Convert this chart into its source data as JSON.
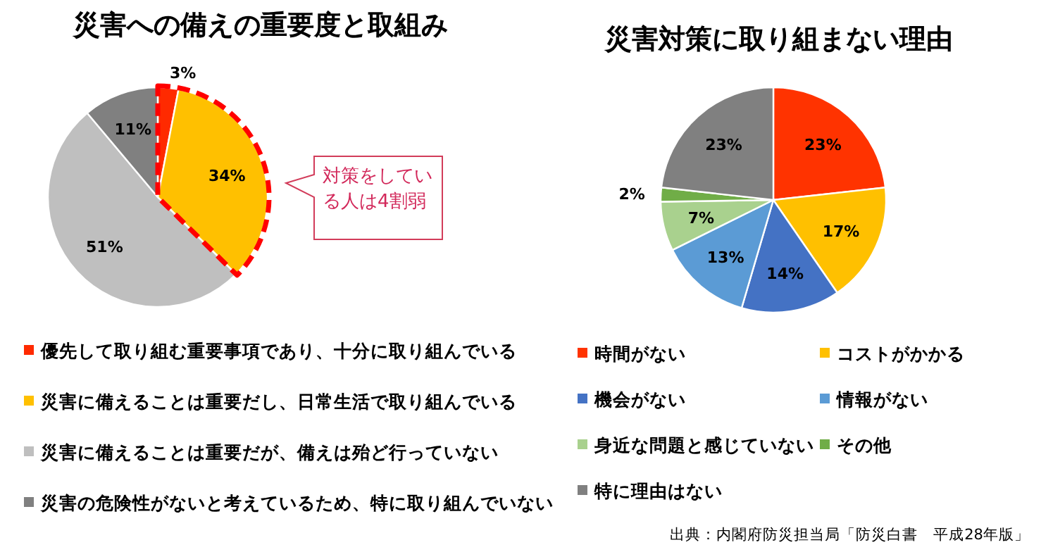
{
  "chart_data": [
    {
      "type": "pie",
      "title": "災害への備えの重要度と取組み",
      "categories": [
        "優先して取り組む重要事項であり、十分に取り組んでいる",
        "災害に備えることは重要だし、日常生活で取り組んでいる",
        "災害に備えることは重要だが、備えは殆ど行っていない",
        "災害の危険性がないと考えているため、特に取り組んでいない"
      ],
      "values": [
        3,
        34,
        51,
        11
      ],
      "colors": [
        "#ff2a00",
        "#ffc000",
        "#bfbfbf",
        "#808080"
      ],
      "value_labels": [
        "3%",
        "34%",
        "51%",
        "11%"
      ],
      "legend": "bottom",
      "annotations": [
        "対策をしている人は4割弱"
      ]
    },
    {
      "type": "pie",
      "title": "災害対策に取り組まない理由",
      "categories": [
        "時間がない",
        "コストがかかる",
        "機会がない",
        "情報がない",
        "身近な問題と感じていない",
        "その他",
        "特に理由はない"
      ],
      "values": [
        23,
        17,
        14,
        13,
        7,
        2,
        23
      ],
      "colors": [
        "#ff3300",
        "#ffc000",
        "#4472c4",
        "#5b9bd5",
        "#a9d18e",
        "#70ad47",
        "#808080"
      ],
      "value_labels": [
        "23%",
        "17%",
        "14%",
        "13%",
        "7%",
        "2%",
        "23%"
      ],
      "legend": "bottom",
      "annotations": [
        "出典：内閣府防災担当局「防災白書　平成28年版」"
      ]
    }
  ]
}
